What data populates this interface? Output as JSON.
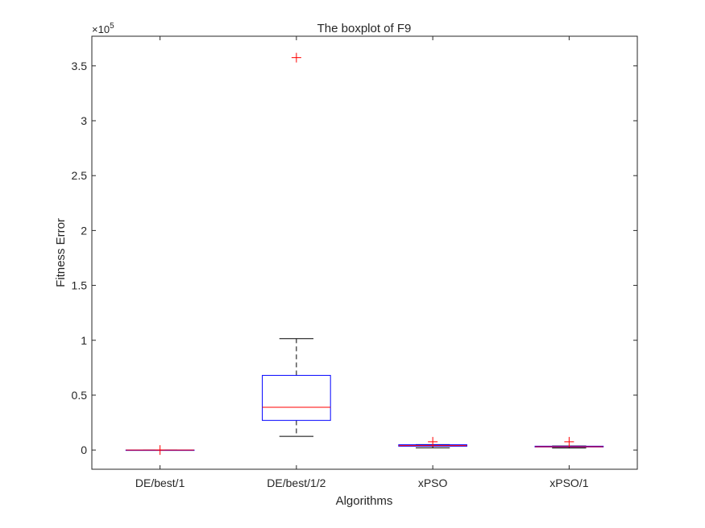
{
  "chart_data": {
    "type": "boxplot",
    "title": "The boxplot of F9",
    "xlabel": "Algorithms",
    "ylabel": "Fitness Error",
    "y_exponent_label": "×10",
    "y_exponent_power": "5",
    "y_scale": 100000,
    "ylim": [
      -17500,
      377000
    ],
    "yticks": [
      0,
      50000,
      100000,
      150000,
      200000,
      250000,
      300000,
      350000
    ],
    "ytick_labels": [
      "0",
      "0.5",
      "1",
      "1.5",
      "2",
      "2.5",
      "3",
      "3.5"
    ],
    "grid": false,
    "categories": [
      "DE/best/1",
      "DE/best/1/2",
      "xPSO",
      "xPSO/1"
    ],
    "boxes": [
      {
        "whisker_low": 0,
        "q1": 0,
        "median": 0,
        "q3": 0,
        "whisker_high": 0,
        "outliers": [
          0
        ]
      },
      {
        "whisker_low": 12500,
        "q1": 27000,
        "median": 39000,
        "q3": 68000,
        "whisker_high": 101500,
        "outliers": [
          357500
        ]
      },
      {
        "whisker_low": 2000,
        "q1": 3500,
        "median": 4000,
        "q3": 4800,
        "whisker_high": 5000,
        "outliers": [
          7500
        ]
      },
      {
        "whisker_low": 1800,
        "q1": 2800,
        "median": 3000,
        "q3": 3500,
        "whisker_high": 3700,
        "outliers": [
          7500
        ]
      }
    ],
    "colors": {
      "box": "#0000ff",
      "median": "#ff0000",
      "whisker": "#000000",
      "outlier": "#ff0000"
    }
  }
}
